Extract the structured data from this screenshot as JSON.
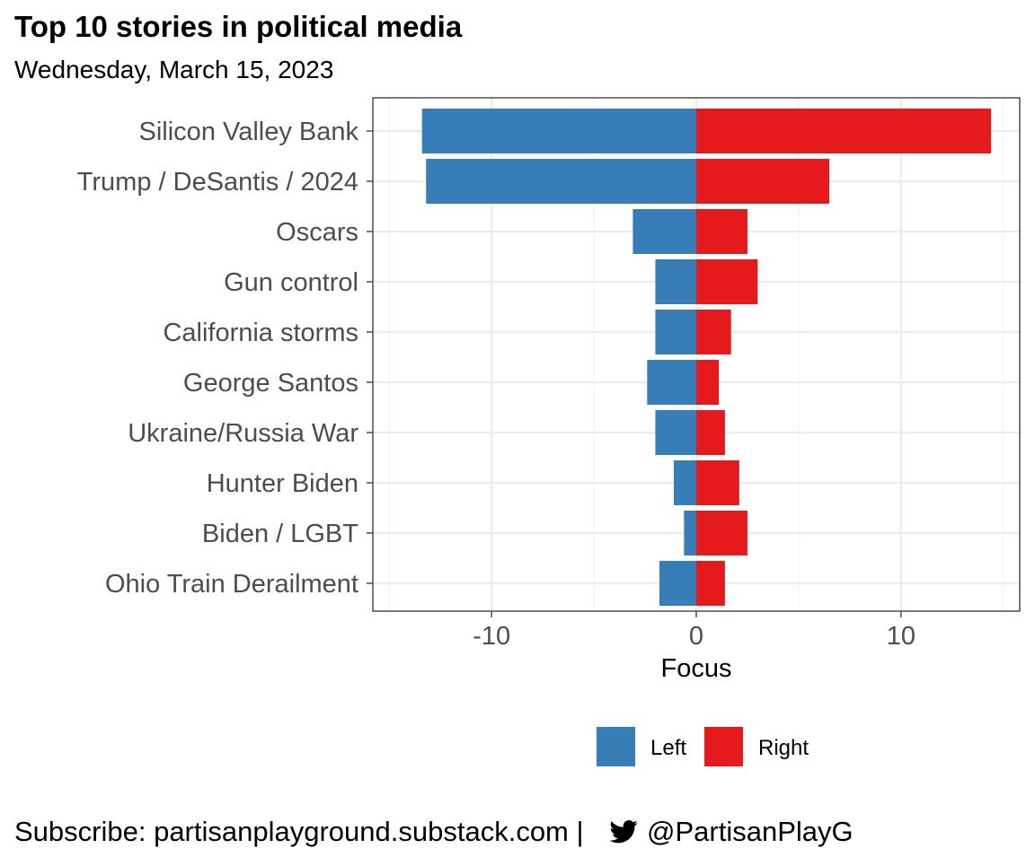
{
  "chart_data": {
    "type": "bar",
    "orientation": "horizontal-diverging",
    "title": "Top 10 stories in political media",
    "subtitle": "Wednesday, March 15, 2023",
    "xlabel": "Focus",
    "ylabel": "",
    "xlim": [
      -15.8,
      15.8
    ],
    "xticks": [
      -10,
      0,
      10
    ],
    "xtick_labels": [
      "-10",
      "0",
      "10"
    ],
    "grid": true,
    "legend_position": "bottom",
    "categories": [
      "Silicon Valley Bank",
      "Trump / DeSantis / 2024",
      "Oscars",
      "Gun control",
      "California storms",
      "George Santos",
      "Ukraine/Russia War",
      "Hunter Biden",
      "Biden / LGBT",
      "Ohio Train Derailment"
    ],
    "series": [
      {
        "name": "Left",
        "color": "#377eb8",
        "values": [
          -13.4,
          -13.2,
          -3.1,
          -2.0,
          -2.0,
          -2.4,
          -2.0,
          -1.1,
          -0.6,
          -1.8
        ]
      },
      {
        "name": "Right",
        "color": "#e41a1c",
        "values": [
          14.4,
          6.5,
          2.5,
          3.0,
          1.7,
          1.1,
          1.4,
          2.1,
          2.5,
          1.4
        ]
      }
    ]
  },
  "footer": {
    "subscribe_text": "Subscribe: partisanplayground.substack.com | ",
    "twitter_icon": "twitter-bird-icon",
    "handle": "@PartisanPlayG"
  }
}
